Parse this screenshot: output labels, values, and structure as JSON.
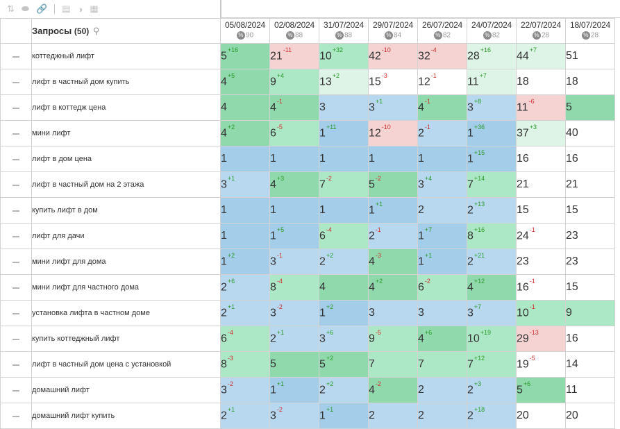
{
  "toolbar": {
    "icons": [
      {
        "name": "sort-icon",
        "glyph": "⇅"
      },
      {
        "name": "toggle-icon",
        "glyph": "⬬"
      },
      {
        "name": "link-icon",
        "glyph": "🔗"
      },
      {
        "name": "save-icon",
        "glyph": "▤"
      },
      {
        "name": "contrast-icon",
        "glyph": "◑"
      },
      {
        "name": "image-icon",
        "glyph": "▦"
      }
    ]
  },
  "header": {
    "title": "Запросы",
    "count": "(50)",
    "search_icon": "⚲"
  },
  "dates": [
    {
      "date": "05/08/2024",
      "pct": "90"
    },
    {
      "date": "02/08/2024",
      "pct": "88"
    },
    {
      "date": "31/07/2024",
      "pct": "88"
    },
    {
      "date": "29/07/2024",
      "pct": "84"
    },
    {
      "date": "26/07/2024",
      "pct": "82"
    },
    {
      "date": "24/07/2024",
      "pct": "82"
    },
    {
      "date": "22/07/2024",
      "pct": "28"
    },
    {
      "date": "18/07/2024",
      "pct": "28"
    }
  ],
  "rows": [
    {
      "query": "коттеджный лифт",
      "cells": [
        {
          "v": "5",
          "d": "+16",
          "c": "c3"
        },
        {
          "v": "21",
          "d": "-11",
          "c": "c6"
        },
        {
          "v": "10",
          "d": "+32",
          "c": "c4"
        },
        {
          "v": "42",
          "d": "-10",
          "c": "c6"
        },
        {
          "v": "32",
          "d": "-4",
          "c": "c6"
        },
        {
          "v": "28",
          "d": "+16",
          "c": "c5"
        },
        {
          "v": "44",
          "d": "+7",
          "c": "c5"
        },
        {
          "v": "51",
          "d": "",
          "c": "c0"
        }
      ]
    },
    {
      "query": "лифт в частный дом купить",
      "cells": [
        {
          "v": "4",
          "d": "+5",
          "c": "c3"
        },
        {
          "v": "9",
          "d": "+4",
          "c": "c4"
        },
        {
          "v": "13",
          "d": "+2",
          "c": "c5"
        },
        {
          "v": "15",
          "d": "-3",
          "c": "c0"
        },
        {
          "v": "12",
          "d": "-1",
          "c": "c0"
        },
        {
          "v": "11",
          "d": "+7",
          "c": "c5"
        },
        {
          "v": "18",
          "d": "",
          "c": "c0"
        },
        {
          "v": "18",
          "d": "",
          "c": "c0"
        }
      ]
    },
    {
      "query": "лифт в коттедж цена",
      "cells": [
        {
          "v": "4",
          "d": "",
          "c": "c3"
        },
        {
          "v": "4",
          "d": "-1",
          "c": "c3"
        },
        {
          "v": "3",
          "d": "",
          "c": "c2"
        },
        {
          "v": "3",
          "d": "+1",
          "c": "c2"
        },
        {
          "v": "4",
          "d": "-1",
          "c": "c3"
        },
        {
          "v": "3",
          "d": "+8",
          "c": "c2"
        },
        {
          "v": "11",
          "d": "-6",
          "c": "c6"
        },
        {
          "v": "5",
          "d": "",
          "c": "c3"
        }
      ]
    },
    {
      "query": "мини лифт",
      "cells": [
        {
          "v": "4",
          "d": "+2",
          "c": "c3"
        },
        {
          "v": "6",
          "d": "-5",
          "c": "c4"
        },
        {
          "v": "1",
          "d": "+11",
          "c": "c1"
        },
        {
          "v": "12",
          "d": "-10",
          "c": "c6"
        },
        {
          "v": "2",
          "d": "-1",
          "c": "c2"
        },
        {
          "v": "1",
          "d": "+36",
          "c": "c1"
        },
        {
          "v": "37",
          "d": "+3",
          "c": "c5"
        },
        {
          "v": "40",
          "d": "",
          "c": "c0"
        }
      ]
    },
    {
      "query": "лифт в дом цена",
      "cells": [
        {
          "v": "1",
          "d": "",
          "c": "c1"
        },
        {
          "v": "1",
          "d": "",
          "c": "c1"
        },
        {
          "v": "1",
          "d": "",
          "c": "c1"
        },
        {
          "v": "1",
          "d": "",
          "c": "c1"
        },
        {
          "v": "1",
          "d": "",
          "c": "c1"
        },
        {
          "v": "1",
          "d": "+15",
          "c": "c1"
        },
        {
          "v": "16",
          "d": "",
          "c": "c0"
        },
        {
          "v": "16",
          "d": "",
          "c": "c0"
        }
      ]
    },
    {
      "query": "лифт в частный дом на 2 этажа",
      "cells": [
        {
          "v": "3",
          "d": "+1",
          "c": "c2"
        },
        {
          "v": "4",
          "d": "+3",
          "c": "c3"
        },
        {
          "v": "7",
          "d": "-2",
          "c": "c4"
        },
        {
          "v": "5",
          "d": "-2",
          "c": "c3"
        },
        {
          "v": "3",
          "d": "+4",
          "c": "c2"
        },
        {
          "v": "7",
          "d": "+14",
          "c": "c4"
        },
        {
          "v": "21",
          "d": "",
          "c": "c0"
        },
        {
          "v": "21",
          "d": "",
          "c": "c0"
        }
      ]
    },
    {
      "query": "купить лифт в дом",
      "cells": [
        {
          "v": "1",
          "d": "",
          "c": "c1"
        },
        {
          "v": "1",
          "d": "",
          "c": "c1"
        },
        {
          "v": "1",
          "d": "",
          "c": "c1"
        },
        {
          "v": "1",
          "d": "+1",
          "c": "c1"
        },
        {
          "v": "2",
          "d": "",
          "c": "c2"
        },
        {
          "v": "2",
          "d": "+13",
          "c": "c2"
        },
        {
          "v": "15",
          "d": "",
          "c": "c0"
        },
        {
          "v": "15",
          "d": "",
          "c": "c0"
        }
      ]
    },
    {
      "query": "лифт для дачи",
      "cells": [
        {
          "v": "1",
          "d": "",
          "c": "c1"
        },
        {
          "v": "1",
          "d": "+5",
          "c": "c1"
        },
        {
          "v": "6",
          "d": "-4",
          "c": "c4"
        },
        {
          "v": "2",
          "d": "-1",
          "c": "c2"
        },
        {
          "v": "1",
          "d": "+7",
          "c": "c1"
        },
        {
          "v": "8",
          "d": "+16",
          "c": "c4"
        },
        {
          "v": "24",
          "d": "-1",
          "c": "c0"
        },
        {
          "v": "23",
          "d": "",
          "c": "c0"
        }
      ]
    },
    {
      "query": "мини лифт для дома",
      "cells": [
        {
          "v": "1",
          "d": "+2",
          "c": "c1"
        },
        {
          "v": "3",
          "d": "-1",
          "c": "c2"
        },
        {
          "v": "2",
          "d": "+2",
          "c": "c2"
        },
        {
          "v": "4",
          "d": "-3",
          "c": "c3"
        },
        {
          "v": "1",
          "d": "+1",
          "c": "c1"
        },
        {
          "v": "2",
          "d": "+21",
          "c": "c2"
        },
        {
          "v": "23",
          "d": "",
          "c": "c0"
        },
        {
          "v": "23",
          "d": "",
          "c": "c0"
        }
      ]
    },
    {
      "query": "мини лифт для частного дома",
      "cells": [
        {
          "v": "2",
          "d": "+6",
          "c": "c2"
        },
        {
          "v": "8",
          "d": "-4",
          "c": "c4"
        },
        {
          "v": "4",
          "d": "",
          "c": "c3"
        },
        {
          "v": "4",
          "d": "+2",
          "c": "c3"
        },
        {
          "v": "6",
          "d": "-2",
          "c": "c4"
        },
        {
          "v": "4",
          "d": "+12",
          "c": "c3"
        },
        {
          "v": "16",
          "d": "-1",
          "c": "c0"
        },
        {
          "v": "15",
          "d": "",
          "c": "c0"
        }
      ]
    },
    {
      "query": "установка лифта в частном доме",
      "cells": [
        {
          "v": "2",
          "d": "+1",
          "c": "c2"
        },
        {
          "v": "3",
          "d": "-2",
          "c": "c2"
        },
        {
          "v": "1",
          "d": "+2",
          "c": "c1"
        },
        {
          "v": "3",
          "d": "",
          "c": "c2"
        },
        {
          "v": "3",
          "d": "",
          "c": "c2"
        },
        {
          "v": "3",
          "d": "+7",
          "c": "c2"
        },
        {
          "v": "10",
          "d": "-1",
          "c": "c4"
        },
        {
          "v": "9",
          "d": "",
          "c": "c4"
        }
      ]
    },
    {
      "query": "купить коттеджный лифт",
      "cells": [
        {
          "v": "6",
          "d": "-4",
          "c": "c4"
        },
        {
          "v": "2",
          "d": "+1",
          "c": "c2"
        },
        {
          "v": "3",
          "d": "+6",
          "c": "c2"
        },
        {
          "v": "9",
          "d": "-5",
          "c": "c4"
        },
        {
          "v": "4",
          "d": "+6",
          "c": "c3"
        },
        {
          "v": "10",
          "d": "+19",
          "c": "c4"
        },
        {
          "v": "29",
          "d": "-13",
          "c": "c6"
        },
        {
          "v": "16",
          "d": "",
          "c": "c0"
        }
      ]
    },
    {
      "query": "лифт в частный дом цена с установкой",
      "cells": [
        {
          "v": "8",
          "d": "-3",
          "c": "c4"
        },
        {
          "v": "5",
          "d": "",
          "c": "c3"
        },
        {
          "v": "5",
          "d": "+2",
          "c": "c3"
        },
        {
          "v": "7",
          "d": "",
          "c": "c4"
        },
        {
          "v": "7",
          "d": "",
          "c": "c4"
        },
        {
          "v": "7",
          "d": "+12",
          "c": "c4"
        },
        {
          "v": "19",
          "d": "-5",
          "c": "c0"
        },
        {
          "v": "14",
          "d": "",
          "c": "c0"
        }
      ]
    },
    {
      "query": "домашний лифт",
      "cells": [
        {
          "v": "3",
          "d": "-2",
          "c": "c2"
        },
        {
          "v": "1",
          "d": "+1",
          "c": "c1"
        },
        {
          "v": "2",
          "d": "+2",
          "c": "c2"
        },
        {
          "v": "4",
          "d": "-2",
          "c": "c3"
        },
        {
          "v": "2",
          "d": "",
          "c": "c2"
        },
        {
          "v": "2",
          "d": "+3",
          "c": "c2"
        },
        {
          "v": "5",
          "d": "+6",
          "c": "c3"
        },
        {
          "v": "11",
          "d": "",
          "c": "c0"
        }
      ]
    },
    {
      "query": "домашний лифт купить",
      "cells": [
        {
          "v": "2",
          "d": "+1",
          "c": "c2"
        },
        {
          "v": "3",
          "d": "-2",
          "c": "c2"
        },
        {
          "v": "1",
          "d": "+1",
          "c": "c1"
        },
        {
          "v": "2",
          "d": "",
          "c": "c2"
        },
        {
          "v": "2",
          "d": "",
          "c": "c2"
        },
        {
          "v": "2",
          "d": "+18",
          "c": "c2"
        },
        {
          "v": "20",
          "d": "",
          "c": "c0"
        },
        {
          "v": "20",
          "d": "",
          "c": "c0"
        }
      ]
    }
  ]
}
